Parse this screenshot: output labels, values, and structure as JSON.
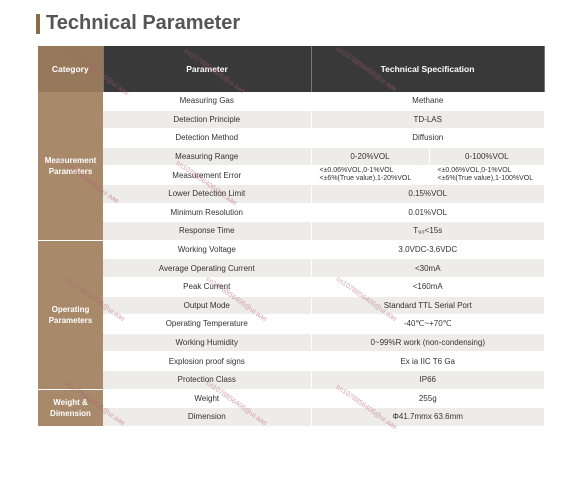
{
  "page_title": "Technical Parameter",
  "header": {
    "category": "Category",
    "parameter": "Parameter",
    "specification": "Technical Specification"
  },
  "groups": [
    {
      "name": "Measurement Parameters",
      "rows": [
        {
          "param": "Measuring Gas",
          "spec": "Methane"
        },
        {
          "param": "Detection Principle",
          "spec": "TD-LAS"
        },
        {
          "param": "Detection Method",
          "spec": "Diffusion"
        },
        {
          "param": "Measuring Range",
          "spec_a": "0-20%VOL",
          "spec_b": "0-100%VOL"
        },
        {
          "param": "Measurement Error",
          "spec_a_1": "<±0.06%VOL,0-1%VOL",
          "spec_a_2": "<±6%(True value),1-20%VOL",
          "spec_b_1": "<±0.06%VOL,0-1%VOL",
          "spec_b_2": "<±6%(True value),1-100%VOL"
        },
        {
          "param": "Lower Detection Limit",
          "spec": "0.15%VOL"
        },
        {
          "param": "Minimum Resolution",
          "spec": "0.01%VOL"
        },
        {
          "param": "Response Time",
          "spec": "T₉₀<15s"
        }
      ]
    },
    {
      "name": "Operating Parameters",
      "rows": [
        {
          "param": "Working Voltage",
          "spec": "3.0VDC-3.6VDC"
        },
        {
          "param": "Average Operating Current",
          "spec": "<30mA"
        },
        {
          "param": "Peak Current",
          "spec": "<160mA"
        },
        {
          "param": "Output Mode",
          "spec": "Standard TTL Serial Port"
        },
        {
          "param": "Operating Temperature",
          "spec": "-40℃~+70℃"
        },
        {
          "param": "Working Humidity",
          "spec": "0~99%R work (non-condensing)"
        },
        {
          "param": "Explosion proof signs",
          "spec": "Ex ia IIC T6 Ga"
        },
        {
          "param": "Protection Class",
          "spec": "IP66"
        }
      ]
    },
    {
      "name": "Weight & Dimension",
      "rows": [
        {
          "param": "Weight",
          "spec": "255g"
        },
        {
          "param": "Dimension",
          "spec": "Φ41.7mmx 63.6mm"
        }
      ]
    }
  ],
  "watermark_text": "cn1078856406@ui.aae",
  "colors": {
    "header_dark": "#393939",
    "category_brown": "#a8896a",
    "alt_row": "#eeece8"
  }
}
